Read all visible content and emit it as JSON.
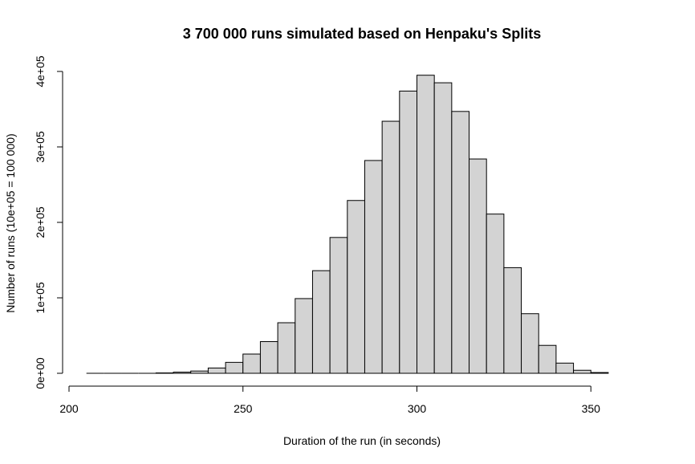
{
  "chart_data": {
    "type": "bar",
    "title": "3 700 000 runs simulated based on Henpaku's Splits",
    "xlabel": "Duration of the run (in seconds)",
    "ylabel": "Number of runs (10e+05 = 100 000)",
    "xlim": [
      200,
      365
    ],
    "ylim": [
      0,
      400000
    ],
    "x_ticks": [
      200,
      250,
      300,
      350
    ],
    "x_tick_labels": [
      "200",
      "250",
      "300",
      "350"
    ],
    "y_ticks": [
      0,
      100000,
      200000,
      300000,
      400000
    ],
    "y_tick_labels": [
      "0e+00",
      "1e+05",
      "2e+05",
      "3e+05",
      "4e+05"
    ],
    "bar_fill": "#d3d3d3",
    "bin_edges": [
      205,
      210,
      215,
      220,
      225,
      230,
      235,
      240,
      245,
      250,
      255,
      260,
      265,
      270,
      275,
      280,
      285,
      290,
      295,
      300,
      305,
      310,
      315,
      320,
      325,
      330,
      335,
      340,
      345,
      350,
      355
    ],
    "values": [
      0,
      0,
      0,
      0,
      500,
      1500,
      3000,
      7000,
      14500,
      25500,
      42000,
      67000,
      99000,
      136000,
      180000,
      229000,
      282000,
      334000,
      374000,
      395000,
      385000,
      347000,
      284000,
      211000,
      140000,
      79000,
      37000,
      13500,
      4000,
      1000
    ]
  }
}
